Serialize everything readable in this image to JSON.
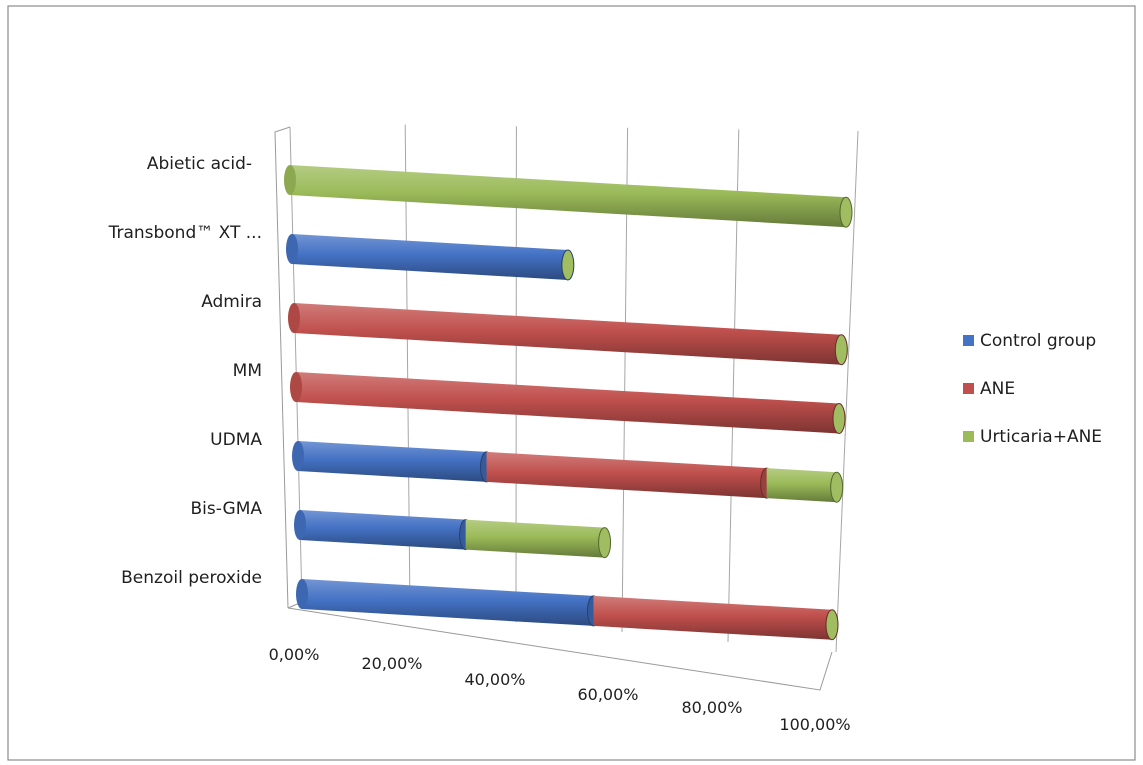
{
  "chart_data": {
    "type": "bar",
    "orientation": "horizontal",
    "stacked": true,
    "style": "3d-cylinder",
    "categories": [
      "Abietic acid-",
      "Transbond™ XT ...",
      "Admira",
      "MM",
      "UDMA",
      "Bis-GMA",
      "Benzoil peroxide"
    ],
    "series": [
      {
        "name": "Control group",
        "color": "#4472c4",
        "values": [
          0,
          50,
          0,
          0,
          35,
          31,
          55
        ]
      },
      {
        "name": "ANE",
        "color": "#c0504d",
        "values": [
          0,
          0,
          100,
          100,
          52,
          0,
          45
        ]
      },
      {
        "name": "Urticaria+ANE",
        "color": "#9bbb59",
        "values": [
          100,
          0,
          0,
          0,
          13,
          26,
          0
        ]
      }
    ],
    "x_ticks": [
      "0,00%",
      "20,00%",
      "40,00%",
      "60,00%",
      "80,00%",
      "100,00%"
    ],
    "xlim": [
      0,
      100
    ],
    "grid": true,
    "legend_position": "right"
  }
}
